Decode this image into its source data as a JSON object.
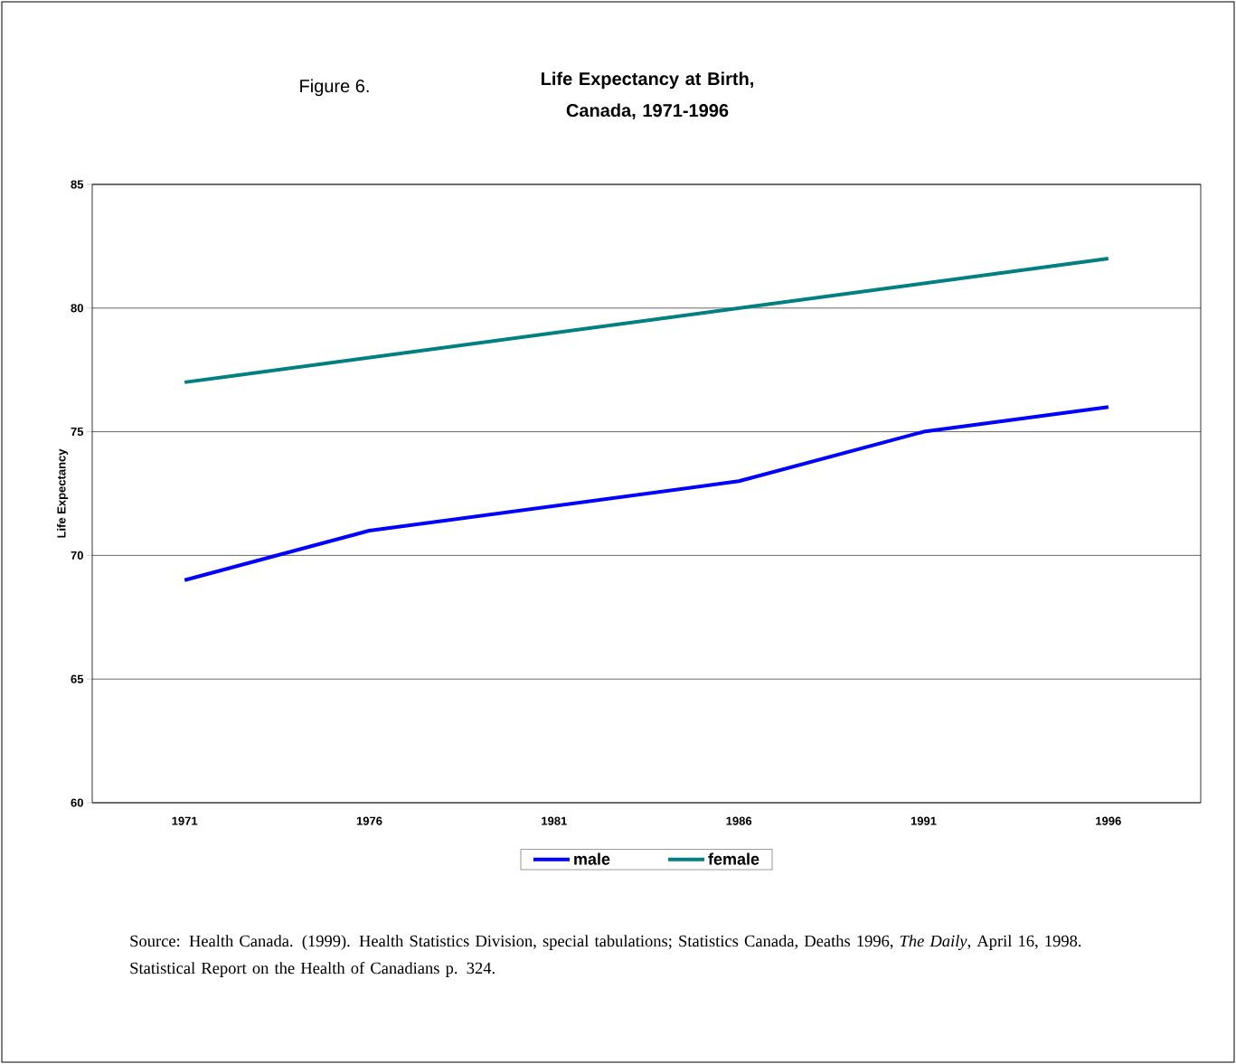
{
  "chart_data": {
    "type": "line",
    "title": "Life Expectancy at Birth, Canada, 1971-1996",
    "subtitle": "Figure 6.",
    "ylabel": "Life Expectancy",
    "categories": [
      "1971",
      "1976",
      "1981",
      "1986",
      "1991",
      "1996"
    ],
    "series": [
      {
        "name": "male",
        "color": "#0000ff",
        "values": [
          69,
          71,
          72,
          73,
          75,
          76
        ]
      },
      {
        "name": "female",
        "color": "#008080",
        "values": [
          77,
          78,
          79,
          80,
          81,
          82
        ]
      }
    ],
    "ylim": [
      60,
      85
    ],
    "yticks": [
      60,
      65,
      70,
      75,
      80,
      85
    ],
    "grid": "y",
    "legend": "bottom",
    "marker": "none",
    "line_style": "solid",
    "annotations": [
      "Source: Health Canada. (1999). Health Statistics Division, special tabulations; Statistics Canada, Deaths 1996, *The Daily*, April 16, 1998. Statistical Report on the Health of Canadians p. 324."
    ]
  }
}
